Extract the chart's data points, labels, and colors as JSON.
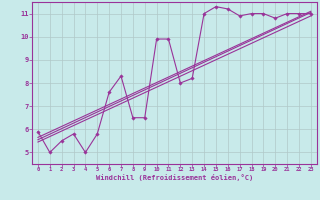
{
  "background_color": "#c8eaea",
  "grid_color": "#c0d8d8",
  "line_color": "#993399",
  "xlabel": "Windchill (Refroidissement éolien,°C)",
  "xlim": [
    -0.5,
    23.5
  ],
  "ylim": [
    4.5,
    11.5
  ],
  "yticks": [
    5,
    6,
    7,
    8,
    9,
    10,
    11
  ],
  "xticks": [
    0,
    1,
    2,
    3,
    4,
    5,
    6,
    7,
    8,
    9,
    10,
    11,
    12,
    13,
    14,
    15,
    16,
    17,
    18,
    19,
    20,
    21,
    22,
    23
  ],
  "line_x": [
    0,
    1,
    2,
    3,
    4,
    5,
    6,
    7,
    8,
    9,
    10,
    11,
    12,
    13,
    14,
    15,
    16,
    17,
    18,
    19,
    20,
    21,
    22,
    23
  ],
  "line_y": [
    5.9,
    5.0,
    5.5,
    5.8,
    5.0,
    5.8,
    7.6,
    8.3,
    6.5,
    6.5,
    9.9,
    9.9,
    8.0,
    8.2,
    11.0,
    11.3,
    11.2,
    10.9,
    11.0,
    11.0,
    10.8,
    11.0,
    11.0,
    11.0
  ],
  "reg_line1": {
    "x": [
      0,
      23
    ],
    "y": [
      5.55,
      11.05
    ]
  },
  "reg_line2": {
    "x": [
      0,
      23
    ],
    "y": [
      5.65,
      11.1
    ]
  },
  "reg_line3": {
    "x": [
      0,
      23
    ],
    "y": [
      5.45,
      10.9
    ]
  }
}
